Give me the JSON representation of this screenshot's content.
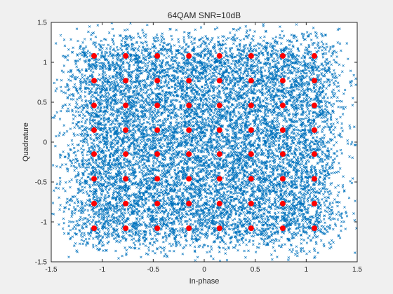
{
  "chart_data": {
    "type": "scatter",
    "title": "64QAM SNR=10dB",
    "xlabel": "In-phase",
    "ylabel": "Quadrature",
    "xlim": [
      -1.5,
      1.5
    ],
    "ylim": [
      -1.5,
      1.5
    ],
    "xticks": [
      -1.5,
      -1,
      -0.5,
      0,
      0.5,
      1,
      1.5
    ],
    "yticks": [
      -1.5,
      -1,
      -0.5,
      0,
      0.5,
      1,
      1.5
    ],
    "xtick_labels": [
      "-1.5",
      "-1",
      "-0.5",
      "0",
      "0.5",
      "1",
      "1.5"
    ],
    "ytick_labels": [
      "-1.5",
      "-1",
      "-0.5",
      "0",
      "0.5",
      "1",
      "1.5"
    ],
    "grid": false,
    "legend": "none",
    "series": [
      {
        "marker": "x",
        "color": "#0072bd",
        "description_of_points": "noisy received symbols, 64QAM at SNR 10 dB, scattered around each constellation point",
        "noise_std": 0.16,
        "clip": [
          -1.5,
          1.5
        ]
      },
      {
        "marker": "filled-circle",
        "color": "#ff0000",
        "levels": [
          -1.08,
          -0.77,
          -0.46,
          -0.15,
          0.15,
          0.46,
          0.77,
          1.08
        ]
      }
    ]
  }
}
